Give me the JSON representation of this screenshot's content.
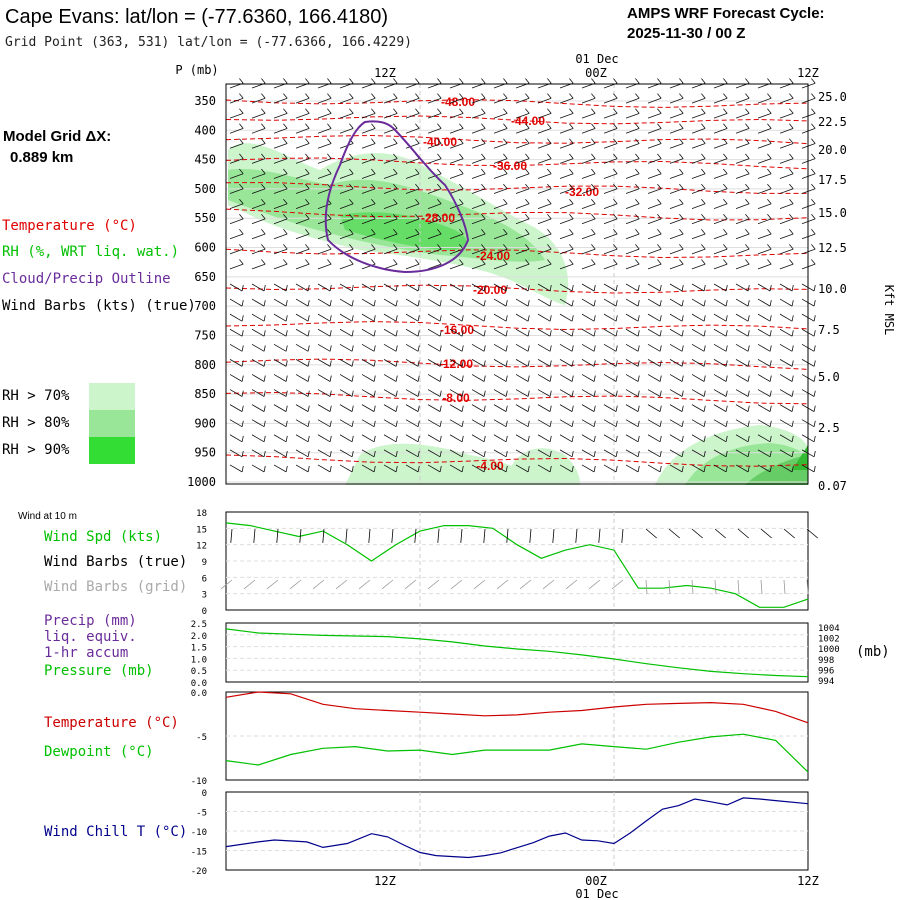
{
  "header": {
    "title": "Cape Evans:  lat/lon = (-77.6360, 166.4180)",
    "grid_point": "Grid Point (363, 531) lat/lon = (-77.6366, 166.4229)",
    "cycle_line1": "AMPS WRF Forecast Cycle:",
    "cycle_line2": "2025-11-30 / 00  Z"
  },
  "model_grid": {
    "label": "Model Grid ΔX:",
    "value": "0.889 km"
  },
  "legend": {
    "temperature": "Temperature (°C)",
    "rh": "RH (%, WRT liq. wat.)",
    "cloud": "Cloud/Precip Outline",
    "wind": "Wind Barbs (kts) (true)",
    "rh_70": "RH > 70%",
    "rh_80": "RH > 80%",
    "rh_90": "RH > 90%"
  },
  "colors": {
    "temperature": "#e00000",
    "rh": "#00c000",
    "cloud": "#6a2c9a",
    "wind_chill": "#00008b",
    "rh_70": "#ccf5cc",
    "rh_80": "#99e699",
    "rh_90": "#33dd33"
  },
  "time_axis": {
    "top_labels": [
      "12Z",
      "00Z",
      "12Z"
    ],
    "date_label": "01 Dec",
    "bottom_labels": [
      "12Z",
      "00Z",
      "12Z"
    ],
    "bottom_date_label": "01 Dec"
  },
  "chart_data": [
    {
      "type": "contour",
      "title": "Vertical cross-section (time-height)",
      "ylabel": "P (mb)",
      "yticks": [
        "350",
        "400",
        "450",
        "500",
        "550",
        "600",
        "650",
        "700",
        "750",
        "800",
        "850",
        "900",
        "950",
        "1000"
      ],
      "right_axis_label": "Kft MSL",
      "right_ticks": [
        "25.0",
        "22.5",
        "20.0",
        "17.5",
        "15.0",
        "12.5",
        "10.0",
        "7.5",
        "5.0",
        "2.5",
        "0.07"
      ],
      "isotherm_labels": [
        "-48.00",
        "-44.00",
        "-40.00",
        "-36.00",
        "-32.00",
        "-28.00",
        "-24.00",
        "-20.00",
        "-16.00",
        "-12.00",
        "-8.00",
        "-4.00"
      ]
    },
    {
      "type": "line",
      "header": "Wind at 10 m",
      "labels": [
        "Wind Spd (kts)",
        "Wind Barbs (true)",
        "Wind Barbs (grid)"
      ],
      "yticks": [
        "18",
        "15",
        "12",
        "9",
        "6",
        "3",
        "0"
      ],
      "ylim": [
        0,
        18
      ],
      "x": [
        0,
        1.5,
        3,
        4.5,
        6,
        7.5,
        9,
        10.5,
        12,
        13.5,
        15,
        16.5,
        18,
        19.5,
        21,
        22.5,
        24,
        25.5,
        27,
        28.5,
        30,
        31.5,
        33,
        34.5,
        36
      ],
      "series": [
        {
          "name": "Wind Spd (kts)",
          "values": [
            16,
            15.5,
            14.5,
            13.5,
            14.5,
            12,
            9,
            12,
            14.5,
            15.5,
            15.5,
            15,
            12,
            9.5,
            11,
            12,
            11,
            4,
            4,
            4.5,
            4,
            3,
            0.5,
            0.5,
            2
          ]
        }
      ]
    },
    {
      "type": "line",
      "labels": [
        "Precip (mm)",
        "liq. equiv.",
        "1-hr accum",
        "Pressure (mb)"
      ],
      "yticks": [
        "2.5",
        "2.0",
        "1.5",
        "1.0",
        "0.5",
        "0.0"
      ],
      "right_ticks": [
        "1004",
        "1002",
        "1000",
        "998",
        "996",
        "994"
      ],
      "right_unit": "(mb)",
      "ylim": [
        994,
        1004
      ],
      "x": [
        0,
        2,
        4,
        6,
        8,
        10,
        12,
        14,
        16,
        18,
        20,
        22,
        24,
        26,
        28,
        30,
        32,
        34,
        36
      ],
      "series": [
        {
          "name": "Pressure (mb)",
          "values": [
            1003,
            1002.3,
            1002.1,
            1001.9,
            1001.8,
            1001.7,
            1001.3,
            1000.8,
            1000.1,
            999.6,
            999.2,
            998.6,
            997.9,
            997.1,
            996.4,
            995.8,
            995.4,
            995.1,
            994.9
          ]
        }
      ]
    },
    {
      "type": "line",
      "labels": [
        "Temperature (°C)",
        "Dewpoint (°C)"
      ],
      "yticks": [
        "0.0",
        "-5",
        "-10"
      ],
      "ylim": [
        -10,
        0
      ],
      "x": [
        0,
        2,
        4,
        6,
        8,
        10,
        12,
        14,
        16,
        18,
        20,
        22,
        24,
        26,
        28,
        30,
        32,
        34,
        36
      ],
      "series": [
        {
          "name": "Temperature (°C)",
          "values": [
            -0.6,
            0,
            -0.2,
            -1.4,
            -1.9,
            -2.1,
            -2.3,
            -2.5,
            -2.7,
            -2.6,
            -2.3,
            -2.1,
            -1.7,
            -1.4,
            -1.3,
            -1.2,
            -1.4,
            -2.2,
            -3.5
          ]
        },
        {
          "name": "Dewpoint (°C)",
          "values": [
            -7.8,
            -8.3,
            -7.1,
            -6.4,
            -6.2,
            -6.7,
            -6.6,
            -7.1,
            -6.6,
            -6.6,
            -6.6,
            -5.9,
            -6.2,
            -6.5,
            -5.7,
            -5.1,
            -4.8,
            -5.5,
            -9.1
          ]
        }
      ]
    },
    {
      "type": "line",
      "labels": [
        "Wind Chill T (°C)"
      ],
      "yticks": [
        "0",
        "-5",
        "-10",
        "-15",
        "-20"
      ],
      "ylim": [
        -20,
        0
      ],
      "x": [
        0,
        2,
        3,
        5,
        6,
        7.5,
        9,
        10,
        11,
        12,
        13,
        15,
        16,
        17,
        19,
        20,
        21,
        22,
        23,
        24,
        25,
        26,
        27,
        28,
        29,
        30,
        31,
        32,
        33,
        34,
        36
      ],
      "series": [
        {
          "name": "Wind Chill T (°C)",
          "values": [
            -14,
            -12.8,
            -12.3,
            -12.8,
            -14.2,
            -13.2,
            -10.7,
            -11.5,
            -13.6,
            -15.5,
            -16.3,
            -16.8,
            -16.3,
            -15.6,
            -13,
            -11.3,
            -10.5,
            -12.3,
            -12.5,
            -13.2,
            -10.5,
            -7.4,
            -4.4,
            -3.5,
            -1.8,
            -2.5,
            -3.3,
            -1.5,
            -1.8,
            -2.2,
            -3
          ]
        }
      ]
    }
  ]
}
